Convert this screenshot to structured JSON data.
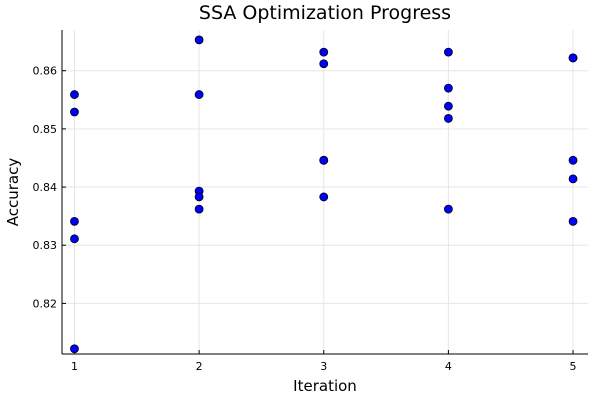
{
  "chart_data": {
    "type": "scatter",
    "title": "SSA Optimization Progress",
    "xlabel": "Iteration",
    "ylabel": "Accuracy",
    "xlim": [
      0.9,
      5.12
    ],
    "ylim": [
      0.8113,
      0.867
    ],
    "xticks": [
      1,
      2,
      3,
      4,
      5
    ],
    "yticks": [
      0.82,
      0.83,
      0.84,
      0.85,
      0.86
    ],
    "ytick_labels": [
      "0.82",
      "0.83",
      "0.84",
      "0.85",
      "0.86"
    ],
    "grid": true,
    "legend": "none",
    "marker_color": "#0000ff",
    "series": [
      {
        "x": [
          1,
          1,
          1,
          1,
          1,
          2,
          2,
          2,
          2,
          2,
          3,
          3,
          3,
          3,
          3,
          4,
          4,
          4,
          4,
          4,
          5,
          5,
          5,
          5,
          5
        ],
        "y": [
          0.8559,
          0.8529,
          0.8341,
          0.8311,
          0.8122,
          0.8653,
          0.8559,
          0.8393,
          0.8383,
          0.8362,
          0.8632,
          0.8612,
          0.8446,
          0.8446,
          0.8383,
          0.8632,
          0.857,
          0.8539,
          0.8518,
          0.8362,
          0.8622,
          0.8622,
          0.8446,
          0.8414,
          0.8341
        ]
      }
    ]
  }
}
